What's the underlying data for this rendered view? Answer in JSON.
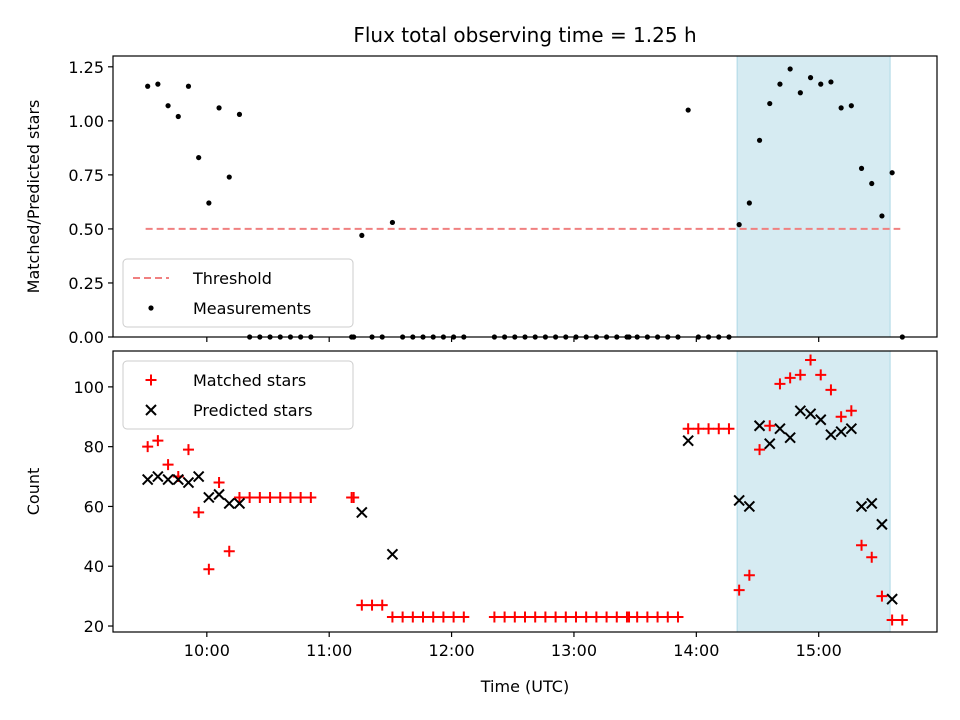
{
  "title": "Flux total observing time = 1.25 h",
  "chart_data": [
    {
      "type": "scatter",
      "ylabel": "Matched/Predicted stars",
      "xlabel": "",
      "xlim": [
        "09:14",
        "15:58"
      ],
      "ylim": [
        0,
        1.3
      ],
      "x_ticks": [
        "10:00",
        "11:00",
        "12:00",
        "13:00",
        "14:00",
        "15:00"
      ],
      "y_ticks": [
        0.0,
        0.25,
        0.5,
        0.75,
        1.0,
        1.25
      ],
      "y_tick_labels": [
        "0.00",
        "0.25",
        "0.50",
        "0.75",
        "1.00",
        "1.25"
      ],
      "x_tick_labels_visible": false,
      "shaded_region": {
        "x": [
          "14:20",
          "15:35"
        ],
        "color": "#add8e6"
      },
      "threshold": {
        "name": "Threshold",
        "value": 0.5,
        "x": [
          "09:30",
          "15:40"
        ],
        "color": "#f08080",
        "style": "dashed"
      },
      "series": [
        {
          "name": "Measurements",
          "color": "#000000",
          "marker": "dot",
          "points": [
            [
              "09:31",
              1.16
            ],
            [
              "09:36",
              1.17
            ],
            [
              "09:41",
              1.07
            ],
            [
              "09:46",
              1.02
            ],
            [
              "09:51",
              1.16
            ],
            [
              "09:56",
              0.83
            ],
            [
              "10:01",
              0.62
            ],
            [
              "10:06",
              1.06
            ],
            [
              "10:11",
              0.74
            ],
            [
              "10:16",
              1.03
            ],
            [
              "10:21",
              0.0
            ],
            [
              "10:26",
              0.0
            ],
            [
              "10:31",
              0.0
            ],
            [
              "10:36",
              0.0
            ],
            [
              "10:41",
              0.0
            ],
            [
              "10:46",
              0.0
            ],
            [
              "10:51",
              0.0
            ],
            [
              "11:11",
              0.0
            ],
            [
              "11:12",
              0.0
            ],
            [
              "11:16",
              0.47
            ],
            [
              "11:21",
              0.0
            ],
            [
              "11:26",
              0.0
            ],
            [
              "11:31",
              0.53
            ],
            [
              "11:36",
              0.0
            ],
            [
              "11:41",
              0.0
            ],
            [
              "11:46",
              0.0
            ],
            [
              "11:51",
              0.0
            ],
            [
              "11:56",
              0.0
            ],
            [
              "12:01",
              0.0
            ],
            [
              "12:06",
              0.0
            ],
            [
              "12:21",
              0.0
            ],
            [
              "12:26",
              0.0
            ],
            [
              "12:31",
              0.0
            ],
            [
              "12:36",
              0.0
            ],
            [
              "12:41",
              0.0
            ],
            [
              "12:46",
              0.0
            ],
            [
              "12:51",
              0.0
            ],
            [
              "12:56",
              0.0
            ],
            [
              "13:01",
              0.0
            ],
            [
              "13:06",
              0.0
            ],
            [
              "13:11",
              0.0
            ],
            [
              "13:16",
              0.0
            ],
            [
              "13:21",
              0.0
            ],
            [
              "13:26",
              0.0
            ],
            [
              "13:27",
              0.0
            ],
            [
              "13:31",
              0.0
            ],
            [
              "13:36",
              0.0
            ],
            [
              "13:41",
              0.0
            ],
            [
              "13:46",
              0.0
            ],
            [
              "13:51",
              0.0
            ],
            [
              "13:56",
              1.05
            ],
            [
              "14:01",
              0.0
            ],
            [
              "14:06",
              0.0
            ],
            [
              "14:11",
              0.0
            ],
            [
              "14:16",
              0.0
            ],
            [
              "14:21",
              0.52
            ],
            [
              "14:26",
              0.62
            ],
            [
              "14:31",
              0.91
            ],
            [
              "14:36",
              1.08
            ],
            [
              "14:41",
              1.17
            ],
            [
              "14:46",
              1.24
            ],
            [
              "14:51",
              1.13
            ],
            [
              "14:56",
              1.2
            ],
            [
              "15:01",
              1.17
            ],
            [
              "15:06",
              1.18
            ],
            [
              "15:11",
              1.06
            ],
            [
              "15:16",
              1.07
            ],
            [
              "15:21",
              0.78
            ],
            [
              "15:26",
              0.71
            ],
            [
              "15:31",
              0.56
            ],
            [
              "15:36",
              0.76
            ],
            [
              "15:41",
              0.0
            ]
          ]
        }
      ],
      "legend": {
        "placement": "lower-left",
        "entries": [
          "Threshold",
          "Measurements"
        ]
      }
    },
    {
      "type": "scatter",
      "ylabel": "Count",
      "xlabel": "Time (UTC)",
      "xlim": [
        "09:14",
        "15:58"
      ],
      "ylim": [
        18,
        112
      ],
      "x_ticks": [
        "10:00",
        "11:00",
        "12:00",
        "13:00",
        "14:00",
        "15:00"
      ],
      "y_ticks": [
        20,
        40,
        60,
        80,
        100
      ],
      "y_tick_labels": [
        "20",
        "40",
        "60",
        "80",
        "100"
      ],
      "shaded_region": {
        "x": [
          "14:20",
          "15:35"
        ],
        "color": "#add8e6"
      },
      "series": [
        {
          "name": "Matched stars",
          "color": "#ff0000",
          "marker": "plus",
          "points": [
            [
              "09:31",
              80
            ],
            [
              "09:36",
              82
            ],
            [
              "09:41",
              74
            ],
            [
              "09:46",
              70
            ],
            [
              "09:51",
              79
            ],
            [
              "09:56",
              58
            ],
            [
              "10:01",
              39
            ],
            [
              "10:06",
              68
            ],
            [
              "10:11",
              45
            ],
            [
              "10:16",
              63
            ],
            [
              "10:21",
              63
            ],
            [
              "10:26",
              63
            ],
            [
              "10:31",
              63
            ],
            [
              "10:36",
              63
            ],
            [
              "10:41",
              63
            ],
            [
              "10:46",
              63
            ],
            [
              "10:51",
              63
            ],
            [
              "11:11",
              63
            ],
            [
              "11:12",
              63
            ],
            [
              "11:16",
              27
            ],
            [
              "11:21",
              27
            ],
            [
              "11:26",
              27
            ],
            [
              "11:31",
              23
            ],
            [
              "11:36",
              23
            ],
            [
              "11:41",
              23
            ],
            [
              "11:46",
              23
            ],
            [
              "11:51",
              23
            ],
            [
              "11:56",
              23
            ],
            [
              "12:01",
              23
            ],
            [
              "12:06",
              23
            ],
            [
              "12:21",
              23
            ],
            [
              "12:26",
              23
            ],
            [
              "12:31",
              23
            ],
            [
              "12:36",
              23
            ],
            [
              "12:41",
              23
            ],
            [
              "12:46",
              23
            ],
            [
              "12:51",
              23
            ],
            [
              "12:56",
              23
            ],
            [
              "13:01",
              23
            ],
            [
              "13:06",
              23
            ],
            [
              "13:11",
              23
            ],
            [
              "13:16",
              23
            ],
            [
              "13:21",
              23
            ],
            [
              "13:26",
              23
            ],
            [
              "13:27",
              23
            ],
            [
              "13:31",
              23
            ],
            [
              "13:36",
              23
            ],
            [
              "13:41",
              23
            ],
            [
              "13:46",
              23
            ],
            [
              "13:51",
              23
            ],
            [
              "13:56",
              86
            ],
            [
              "14:01",
              86
            ],
            [
              "14:06",
              86
            ],
            [
              "14:11",
              86
            ],
            [
              "14:16",
              86
            ],
            [
              "14:21",
              32
            ],
            [
              "14:26",
              37
            ],
            [
              "14:31",
              79
            ],
            [
              "14:36",
              87
            ],
            [
              "14:41",
              101
            ],
            [
              "14:46",
              103
            ],
            [
              "14:51",
              104
            ],
            [
              "14:56",
              109
            ],
            [
              "15:01",
              104
            ],
            [
              "15:06",
              99
            ],
            [
              "15:11",
              90
            ],
            [
              "15:16",
              92
            ],
            [
              "15:21",
              47
            ],
            [
              "15:26",
              43
            ],
            [
              "15:31",
              30
            ],
            [
              "15:36",
              22
            ],
            [
              "15:41",
              22
            ]
          ]
        },
        {
          "name": "Predicted stars",
          "color": "#000000",
          "marker": "x",
          "points": [
            [
              "09:31",
              69
            ],
            [
              "09:36",
              70
            ],
            [
              "09:41",
              69
            ],
            [
              "09:46",
              69
            ],
            [
              "09:51",
              68
            ],
            [
              "09:56",
              70
            ],
            [
              "10:01",
              63
            ],
            [
              "10:06",
              64
            ],
            [
              "10:11",
              61
            ],
            [
              "10:16",
              61
            ],
            [
              "11:16",
              58
            ],
            [
              "11:31",
              44
            ],
            [
              "13:56",
              82
            ],
            [
              "14:21",
              62
            ],
            [
              "14:26",
              60
            ],
            [
              "14:31",
              87
            ],
            [
              "14:36",
              81
            ],
            [
              "14:41",
              86
            ],
            [
              "14:46",
              83
            ],
            [
              "14:51",
              92
            ],
            [
              "14:56",
              91
            ],
            [
              "15:01",
              89
            ],
            [
              "15:06",
              84
            ],
            [
              "15:11",
              85
            ],
            [
              "15:16",
              86
            ],
            [
              "15:21",
              60
            ],
            [
              "15:26",
              61
            ],
            [
              "15:31",
              54
            ],
            [
              "15:36",
              29
            ]
          ]
        }
      ],
      "legend": {
        "placement": "upper-left",
        "entries": [
          "Matched stars",
          "Predicted stars"
        ]
      }
    }
  ]
}
